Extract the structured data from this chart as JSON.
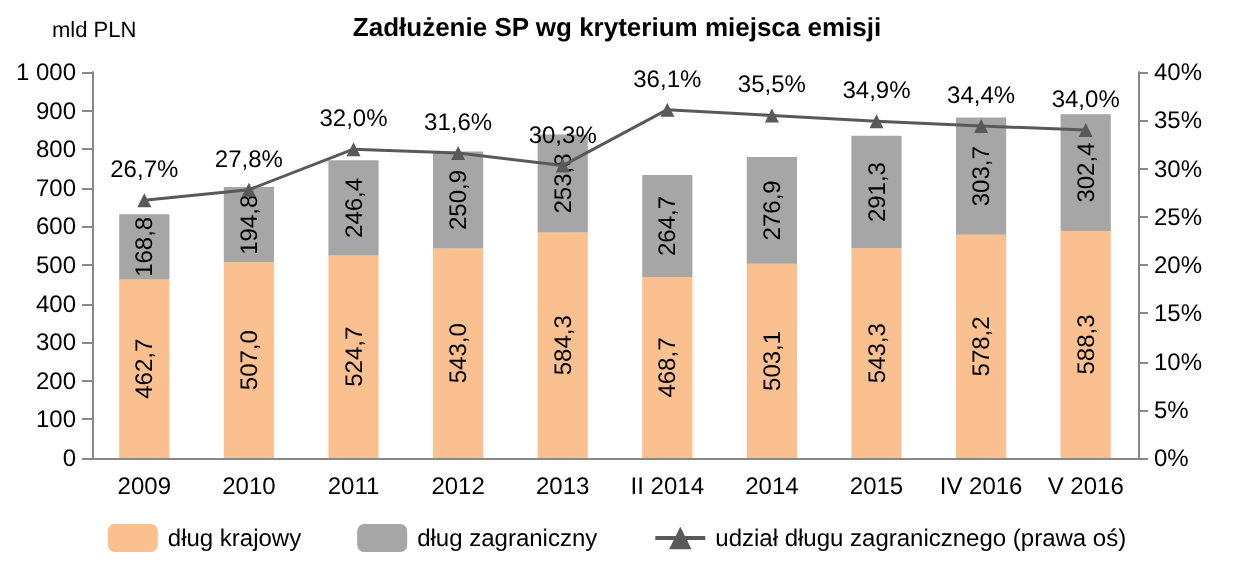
{
  "chart_data": {
    "type": "bar",
    "stacked": true,
    "title": "Zadłużenie SP wg kryterium miejsca emisji",
    "ylabel": "mld PLN",
    "categories": [
      "2009",
      "2010",
      "2011",
      "2012",
      "2013",
      "II 2014",
      "2014",
      "2015",
      "IV 2016",
      "V 2016"
    ],
    "series": [
      {
        "name": "dług krajowy",
        "color": "#fac090",
        "values": [
          462.7,
          507.0,
          524.7,
          543.0,
          584.3,
          468.7,
          503.1,
          543.3,
          578.2,
          588.3
        ],
        "value_labels": [
          "462,7",
          "507,0",
          "524,7",
          "543,0",
          "584,3",
          "468,7",
          "503,1",
          "543,3",
          "578,2",
          "588,3"
        ]
      },
      {
        "name": "dług zagraniczny",
        "color": "#a6a6a6",
        "values": [
          168.8,
          194.8,
          246.4,
          250.9,
          253.8,
          264.7,
          276.9,
          291.3,
          303.7,
          302.4
        ],
        "value_labels": [
          "168,8",
          "194,8",
          "246,4",
          "250,9",
          "253,8",
          "264,7",
          "276,9",
          "291,3",
          "303,7",
          "302,4"
        ]
      },
      {
        "name": "udział długu zagranicznego (prawa oś)",
        "type": "line",
        "axis": "y2",
        "color": "#595959",
        "marker": "triangle",
        "values": [
          26.7,
          27.8,
          32.0,
          31.6,
          30.3,
          36.1,
          35.5,
          34.9,
          34.4,
          34.0
        ],
        "value_labels": [
          "26,7%",
          "27,8%",
          "32,0%",
          "31,6%",
          "30,3%",
          "36,1%",
          "35,5%",
          "34,9%",
          "34,4%",
          "34,0%"
        ]
      }
    ],
    "ylim": [
      0,
      1000
    ],
    "yticks": [
      0,
      100,
      200,
      300,
      400,
      500,
      600,
      700,
      800,
      900,
      {
        "value": 1000,
        "label": "1 000"
      }
    ],
    "y2lim": [
      0,
      40
    ],
    "y2ticks": [
      {
        "value": 0,
        "label": "0%"
      },
      {
        "value": 5,
        "label": "5%"
      },
      {
        "value": 10,
        "label": "10%"
      },
      {
        "value": 15,
        "label": "15%"
      },
      {
        "value": 20,
        "label": "20%"
      },
      {
        "value": 25,
        "label": "25%"
      },
      {
        "value": 30,
        "label": "30%"
      },
      {
        "value": 35,
        "label": "35%"
      },
      {
        "value": 40,
        "label": "40%"
      }
    ],
    "grid": false,
    "legend": "bottom"
  }
}
